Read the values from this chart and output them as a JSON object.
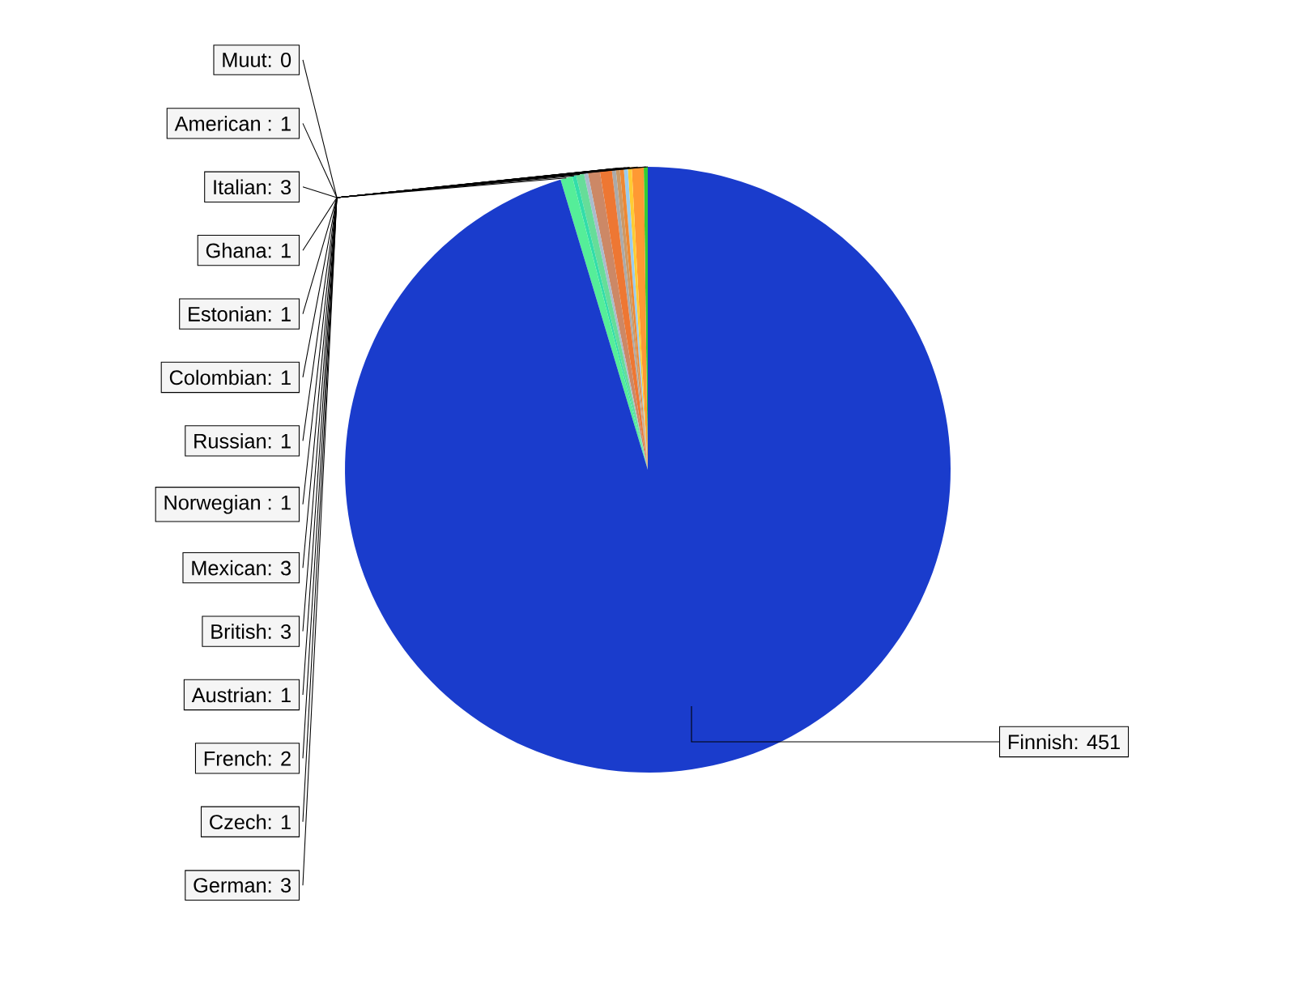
{
  "chart_data": {
    "type": "pie",
    "categories": [
      "Muut: 0",
      "American : 1",
      "Italian: 3",
      "Ghana: 1",
      "Estonian: 1",
      "Colombian: 1",
      "Russian: 1",
      "Norwegian : 1",
      "Mexican: 3",
      "British: 3",
      "Austrian: 1",
      "French: 2",
      "Czech: 1",
      "German: 3",
      "Finnish: 451"
    ],
    "values": [
      0,
      1,
      3,
      1,
      1,
      1,
      1,
      1,
      3,
      3,
      1,
      2,
      1,
      3,
      451
    ],
    "colors": [
      "#999999",
      "#33cc33",
      "#ff9933",
      "#ffcc33",
      "#99ccee",
      "#ee8833",
      "#cc9966",
      "#aaaaaa",
      "#ee7733",
      "#cc8866",
      "#aabbcc",
      "#66dd99",
      "#33ddaa",
      "#55ee99",
      "#1a3ccc"
    ]
  }
}
